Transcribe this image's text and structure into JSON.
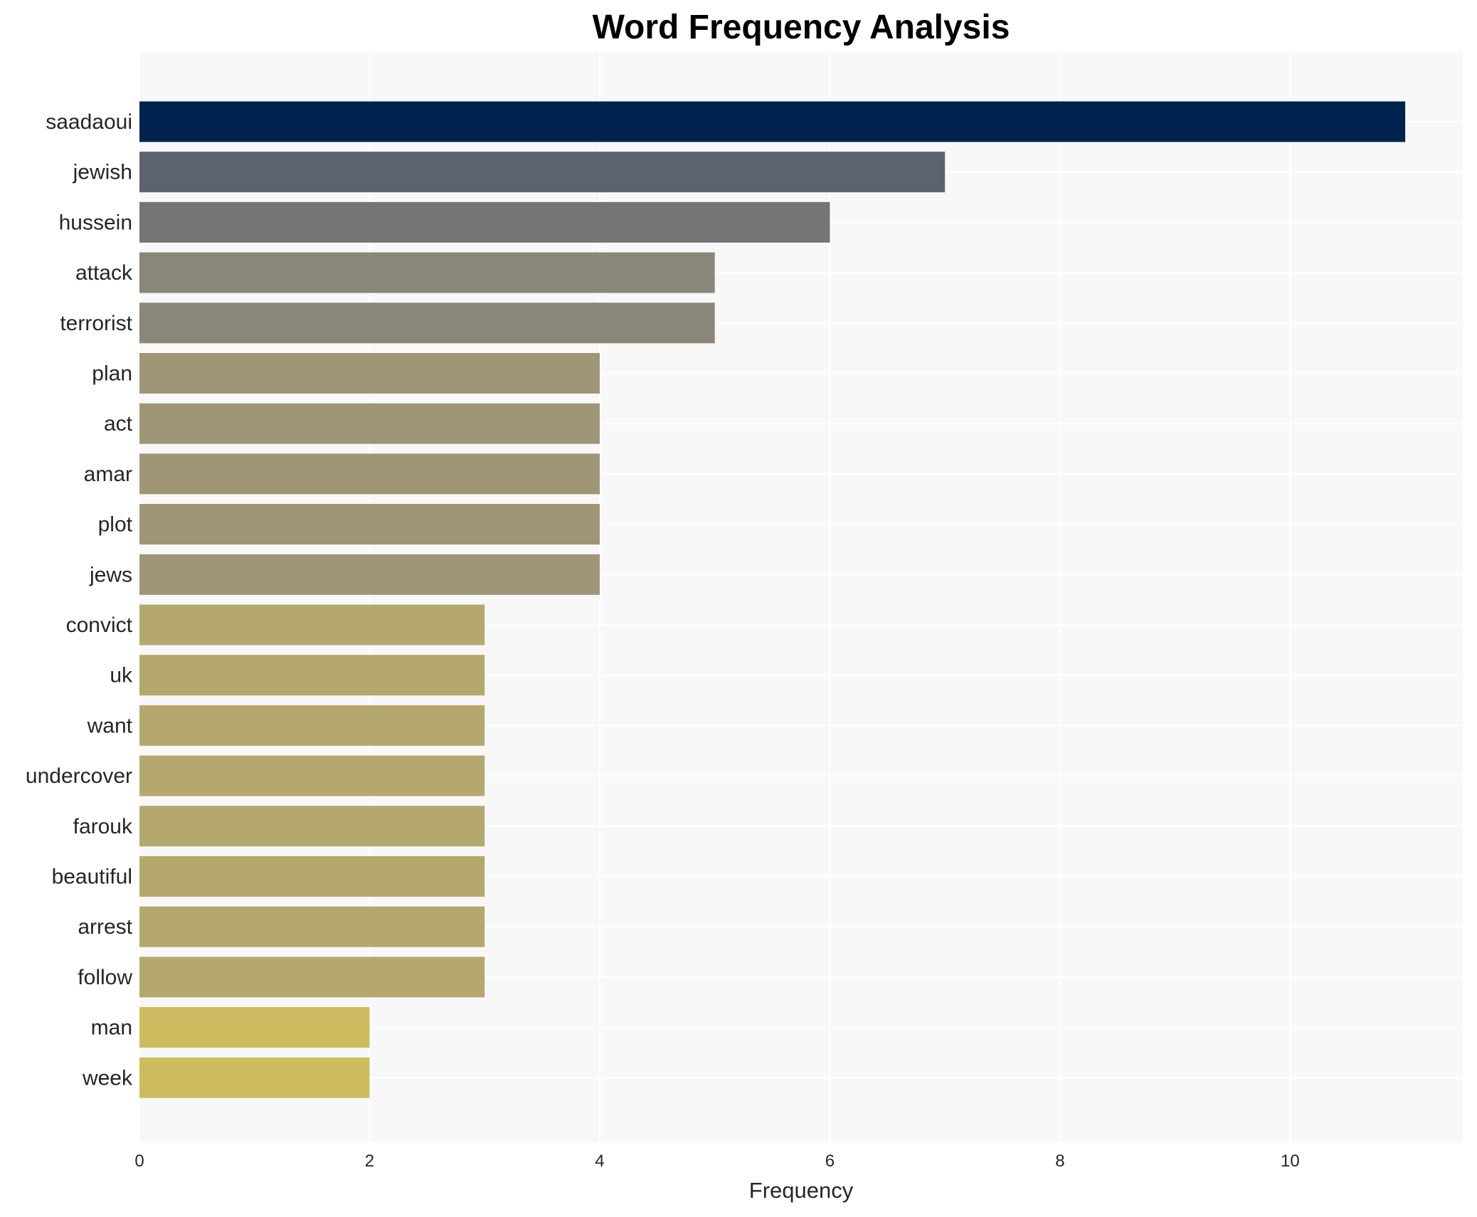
{
  "chart_data": {
    "type": "bar",
    "orientation": "horizontal",
    "title": "Word Frequency Analysis",
    "xlabel": "Frequency",
    "ylabel": "",
    "xlim": [
      0,
      11.5
    ],
    "xticks": [
      0,
      2,
      4,
      6,
      8,
      10
    ],
    "grid": true,
    "categories": [
      "saadaoui",
      "jewish",
      "hussein",
      "attack",
      "terrorist",
      "plan",
      "act",
      "amar",
      "plot",
      "jews",
      "convict",
      "uk",
      "want",
      "undercover",
      "farouk",
      "beautiful",
      "arrest",
      "follow",
      "man",
      "week"
    ],
    "values": [
      11,
      7,
      6,
      5,
      5,
      4,
      4,
      4,
      4,
      4,
      3,
      3,
      3,
      3,
      3,
      3,
      3,
      3,
      2,
      2
    ],
    "colors": [
      "#00224e",
      "#5d6270",
      "#737475",
      "#8a8778",
      "#8a8778",
      "#9f9677",
      "#9f9677",
      "#9f9677",
      "#9f9677",
      "#9f9677",
      "#b5a86e",
      "#b5a86e",
      "#b5a86e",
      "#b5a86e",
      "#b5a86e",
      "#b5a86e",
      "#b5a86e",
      "#b5a86e",
      "#cdbc5f",
      "#cdbc5f"
    ],
    "background": "#f8f8f8"
  }
}
